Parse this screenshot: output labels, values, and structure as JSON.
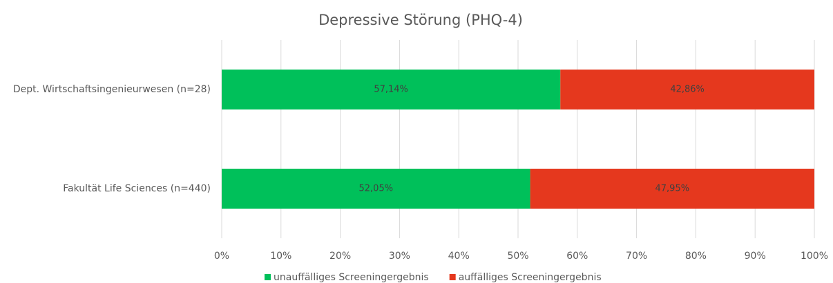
{
  "chart_data": {
    "type": "bar",
    "orientation": "horizontal",
    "stacked": true,
    "title": "Depressive Störung (PHQ-4)",
    "categories": [
      "Dept. Wirtschaftsingenieurwesen (n=28)",
      "Fakultät Life Sciences (n=440)"
    ],
    "series": [
      {
        "name": "unauffälliges Screeningergebnis",
        "color": "#00c05a",
        "values": [
          57.14,
          52.05
        ],
        "value_labels": [
          "57,14%",
          "52,05%"
        ]
      },
      {
        "name": "auffälliges Screeningergebnis",
        "color": "#e5381e",
        "values": [
          42.86,
          47.95
        ],
        "value_labels": [
          "42,86%",
          "47,95%"
        ]
      }
    ],
    "xlim": [
      0,
      100
    ],
    "xticks": [
      {
        "value": 0,
        "label": "0%"
      },
      {
        "value": 10,
        "label": "10%"
      },
      {
        "value": 20,
        "label": "20%"
      },
      {
        "value": 30,
        "label": "30%"
      },
      {
        "value": 40,
        "label": "40%"
      },
      {
        "value": 50,
        "label": "50%"
      },
      {
        "value": 60,
        "label": "60%"
      },
      {
        "value": 70,
        "label": "70%"
      },
      {
        "value": 80,
        "label": "80%"
      },
      {
        "value": 90,
        "label": "90%"
      },
      {
        "value": 100,
        "label": "100%"
      }
    ],
    "grid": true,
    "legend": "bottom"
  }
}
